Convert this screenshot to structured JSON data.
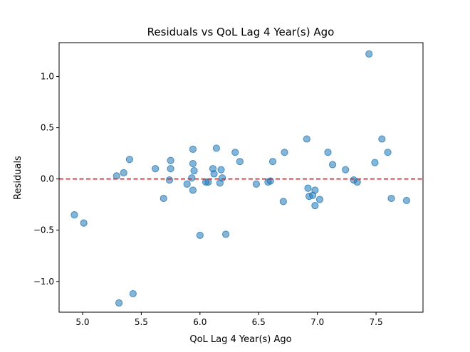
{
  "chart_data": {
    "type": "scatter",
    "title": "Residuals vs QoL Lag 4 Year(s) Ago",
    "xlabel": "QoL Lag 4 Year(s) Ago",
    "ylabel": "Residuals",
    "xlim": [
      4.8,
      7.9
    ],
    "ylim": [
      -1.3,
      1.33
    ],
    "xticks": [
      {
        "value": 5.0,
        "label": "5.0"
      },
      {
        "value": 5.5,
        "label": "5.5"
      },
      {
        "value": 6.0,
        "label": "6.0"
      },
      {
        "value": 6.5,
        "label": "6.5"
      },
      {
        "value": 7.0,
        "label": "7.0"
      },
      {
        "value": 7.5,
        "label": "7.5"
      }
    ],
    "yticks": [
      {
        "value": -1.0,
        "label": "−1.0"
      },
      {
        "value": -0.5,
        "label": "−0.5"
      },
      {
        "value": 0.0,
        "label": "0.0"
      },
      {
        "value": 0.5,
        "label": "0.5"
      },
      {
        "value": 1.0,
        "label": "1.0"
      }
    ],
    "grid": false,
    "reference_line": {
      "y": 0,
      "style": "dashed",
      "color": "#e41a1c"
    },
    "point_color": "#1f77b4",
    "points": [
      {
        "x": 4.93,
        "y": -0.35
      },
      {
        "x": 5.01,
        "y": -0.43
      },
      {
        "x": 5.29,
        "y": 0.03
      },
      {
        "x": 5.31,
        "y": -1.21
      },
      {
        "x": 5.35,
        "y": 0.06
      },
      {
        "x": 5.4,
        "y": 0.19
      },
      {
        "x": 5.43,
        "y": -1.12
      },
      {
        "x": 5.62,
        "y": 0.1
      },
      {
        "x": 5.69,
        "y": -0.19
      },
      {
        "x": 5.74,
        "y": -0.01
      },
      {
        "x": 5.75,
        "y": 0.1
      },
      {
        "x": 5.75,
        "y": 0.18
      },
      {
        "x": 5.89,
        "y": -0.05
      },
      {
        "x": 5.93,
        "y": 0.01
      },
      {
        "x": 5.94,
        "y": 0.29
      },
      {
        "x": 5.94,
        "y": 0.15
      },
      {
        "x": 5.94,
        "y": -0.11
      },
      {
        "x": 5.95,
        "y": 0.08
      },
      {
        "x": 6.0,
        "y": -0.55
      },
      {
        "x": 6.05,
        "y": -0.03
      },
      {
        "x": 6.07,
        "y": -0.03
      },
      {
        "x": 6.11,
        "y": 0.1
      },
      {
        "x": 6.12,
        "y": 0.05
      },
      {
        "x": 6.14,
        "y": 0.3
      },
      {
        "x": 6.17,
        "y": -0.04
      },
      {
        "x": 6.18,
        "y": 0.09
      },
      {
        "x": 6.19,
        "y": 0.01
      },
      {
        "x": 6.22,
        "y": -0.54
      },
      {
        "x": 6.3,
        "y": 0.26
      },
      {
        "x": 6.34,
        "y": 0.17
      },
      {
        "x": 6.48,
        "y": -0.05
      },
      {
        "x": 6.58,
        "y": -0.03
      },
      {
        "x": 6.6,
        "y": -0.02
      },
      {
        "x": 6.62,
        "y": 0.17
      },
      {
        "x": 6.71,
        "y": -0.22
      },
      {
        "x": 6.72,
        "y": 0.26
      },
      {
        "x": 6.91,
        "y": 0.39
      },
      {
        "x": 6.92,
        "y": -0.09
      },
      {
        "x": 6.93,
        "y": -0.17
      },
      {
        "x": 6.96,
        "y": -0.16
      },
      {
        "x": 6.98,
        "y": -0.11
      },
      {
        "x": 6.98,
        "y": -0.26
      },
      {
        "x": 7.02,
        "y": -0.2
      },
      {
        "x": 7.09,
        "y": 0.26
      },
      {
        "x": 7.13,
        "y": 0.14
      },
      {
        "x": 7.24,
        "y": 0.09
      },
      {
        "x": 7.31,
        "y": -0.01
      },
      {
        "x": 7.34,
        "y": -0.03
      },
      {
        "x": 7.44,
        "y": 1.22
      },
      {
        "x": 7.49,
        "y": 0.16
      },
      {
        "x": 7.55,
        "y": 0.39
      },
      {
        "x": 7.6,
        "y": 0.26
      },
      {
        "x": 7.63,
        "y": -0.19
      },
      {
        "x": 7.76,
        "y": -0.21
      }
    ]
  }
}
